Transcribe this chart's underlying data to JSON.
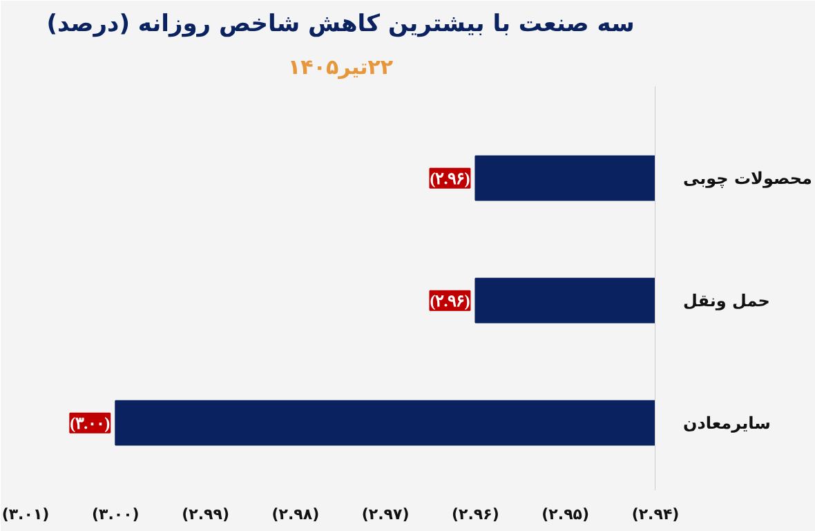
{
  "chart_data": {
    "type": "bar",
    "orientation": "horizontal",
    "title": "سه صنعت با بیشترین کاهش شاخص روزانه (درصد)",
    "subtitle": "۲۲تیر۱۴۰۵",
    "categories": [
      "محصولات چوبی",
      "حمل ونقل",
      "سایرمعادن"
    ],
    "values": [
      -2.96,
      -2.96,
      -3.0
    ],
    "color": "#0b2260",
    "value_labels": [
      "(۲.۹۶)",
      "(۲.۹۶)",
      "(۳.۰۰)"
    ],
    "xlim": [
      -3.01,
      -2.94
    ],
    "xticks": [
      {
        "value": -3.01,
        "label": "(۳.۰۱)"
      },
      {
        "value": -3.0,
        "label": "(۳.۰۰)"
      },
      {
        "value": -2.99,
        "label": "(۲.۹۹)"
      },
      {
        "value": -2.98,
        "label": "(۲.۹۸)"
      },
      {
        "value": -2.97,
        "label": "(۲.۹۷)"
      },
      {
        "value": -2.96,
        "label": "(۲.۹۶)"
      },
      {
        "value": -2.95,
        "label": "(۲.۹۵)"
      },
      {
        "value": -2.94,
        "label": "(۲.۹۴)"
      }
    ],
    "grid": false
  }
}
